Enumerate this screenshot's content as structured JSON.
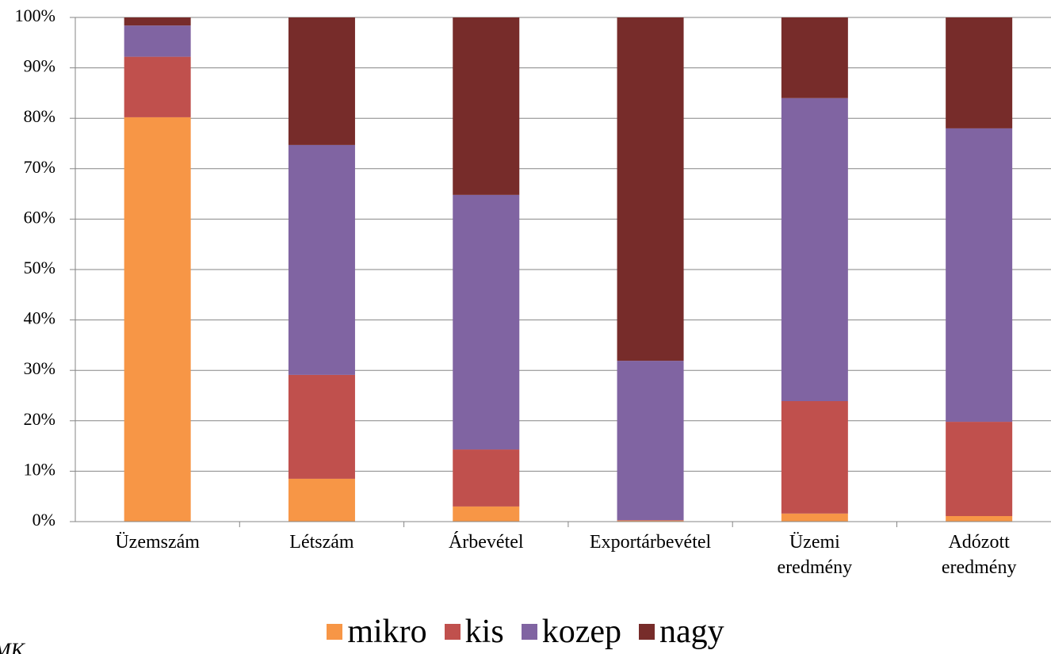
{
  "chart_data": {
    "type": "stacked_bar",
    "categories": [
      "Üzemszám",
      "Létszám",
      "Árbevétel",
      "Exportárbevétel",
      "Üzemi eredmény",
      "Adózott eredmény"
    ],
    "series": [
      {
        "name": "mikro",
        "color": "#f79646",
        "values": [
          80.2,
          8.5,
          3.0,
          0.2,
          1.6,
          1.1
        ]
      },
      {
        "name": "kis",
        "color": "#c0504d",
        "values": [
          12.0,
          20.6,
          11.3,
          0.1,
          22.3,
          18.7
        ]
      },
      {
        "name": "kozep",
        "color": "#8064a2",
        "values": [
          6.2,
          45.6,
          50.5,
          31.6,
          60.1,
          58.2
        ]
      },
      {
        "name": "nagy",
        "color": "#772c2a",
        "values": [
          1.6,
          25.3,
          35.2,
          68.1,
          16.0,
          22.0
        ]
      }
    ],
    "ylim": [
      0,
      100
    ],
    "yticks": [
      {
        "value": 0,
        "label": "0%"
      },
      {
        "value": 10,
        "label": "10%"
      },
      {
        "value": 20,
        "label": "20%"
      },
      {
        "value": 30,
        "label": "30%"
      },
      {
        "value": 40,
        "label": "40%"
      },
      {
        "value": 50,
        "label": "50%"
      },
      {
        "value": 60,
        "label": "60%"
      },
      {
        "value": 70,
        "label": "70%"
      },
      {
        "value": 80,
        "label": "80%"
      },
      {
        "value": 90,
        "label": "90%"
      },
      {
        "value": 100,
        "label": "100%"
      }
    ],
    "grid": true,
    "legend": "bottom",
    "note": "MK"
  }
}
